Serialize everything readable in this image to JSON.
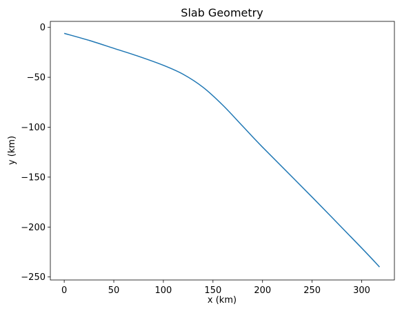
{
  "chart_data": {
    "type": "line",
    "title": "Slab Geometry",
    "xlabel": "x (km)",
    "ylabel": "y (km)",
    "xlim": [
      -14,
      333
    ],
    "ylim": [
      -253,
      6
    ],
    "xticks": [
      0,
      50,
      100,
      150,
      200,
      250,
      300
    ],
    "yticks": [
      0,
      -50,
      -100,
      -150,
      -200,
      -250
    ],
    "xtick_labels": [
      "0",
      "50",
      "100",
      "150",
      "200",
      "250",
      "300"
    ],
    "ytick_labels": [
      "0",
      "−50",
      "−100",
      "−150",
      "−200",
      "−250"
    ],
    "grid": false,
    "legend": "none",
    "series": [
      {
        "color": "#1f77b4",
        "x": [
          0,
          25,
          50,
          75,
          100,
          120,
          140,
          160,
          180,
          200,
          250,
          300,
          318
        ],
        "y": [
          -6,
          -13,
          -21,
          -29,
          -38,
          -47,
          -60,
          -78,
          -99,
          -120,
          -170,
          -221,
          -240
        ]
      }
    ]
  }
}
